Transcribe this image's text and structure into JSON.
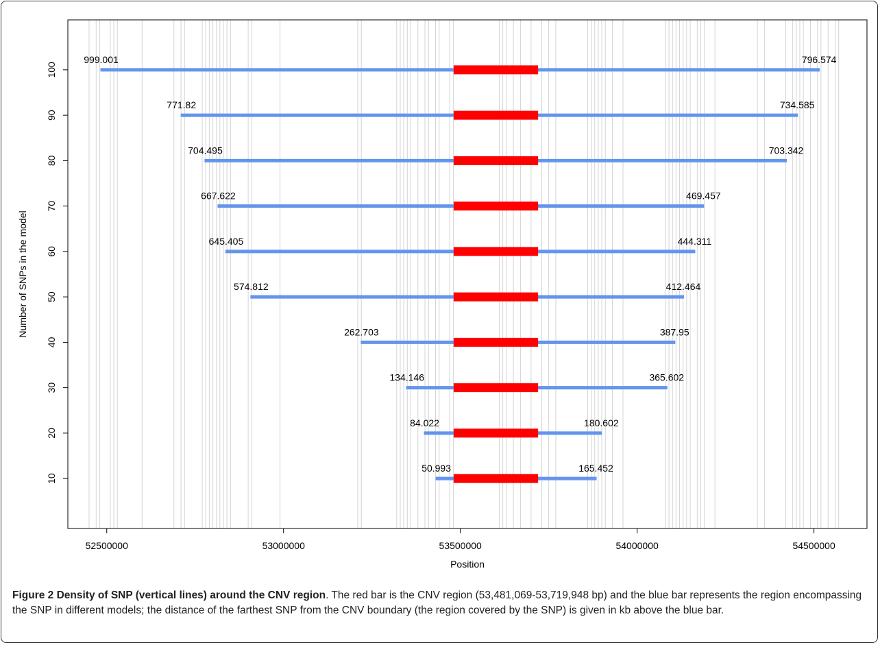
{
  "chart_data": {
    "type": "bar",
    "xlabel": "Position",
    "ylabel": "Number of SNPs in the model",
    "xlim": [
      52390000,
      54650000
    ],
    "ylim": [
      -1,
      111
    ],
    "x_ticks": [
      52500000,
      53000000,
      53500000,
      54000000,
      54500000
    ],
    "x_tick_labels": [
      "52500000",
      "53000000",
      "53500000",
      "54000000",
      "54500000"
    ],
    "y_ticks": [
      10,
      20,
      30,
      40,
      50,
      60,
      70,
      80,
      90,
      100
    ],
    "y_tick_labels": [
      "10",
      "20",
      "30",
      "40",
      "50",
      "60",
      "70",
      "80",
      "90",
      "100"
    ],
    "cnv_region": [
      53481069,
      53719948
    ],
    "models": [
      {
        "snps": 100,
        "left_kb": "999.001",
        "right_kb": "796.574"
      },
      {
        "snps": 90,
        "left_kb": "771.82",
        "right_kb": "734.585"
      },
      {
        "snps": 80,
        "left_kb": "704.495",
        "right_kb": "703.342"
      },
      {
        "snps": 70,
        "left_kb": "667.622",
        "right_kb": "469.457"
      },
      {
        "snps": 60,
        "left_kb": "645.405",
        "right_kb": "444.311"
      },
      {
        "snps": 50,
        "left_kb": "574.812",
        "right_kb": "412.464"
      },
      {
        "snps": 40,
        "left_kb": "262.703",
        "right_kb": "387.95"
      },
      {
        "snps": 30,
        "left_kb": "134.146",
        "right_kb": "365.602"
      },
      {
        "snps": 20,
        "left_kb": "84.022",
        "right_kb": "180.602"
      },
      {
        "snps": 10,
        "left_kb": "50.993",
        "right_kb": "165.452"
      }
    ],
    "snp_positions": [
      52450000,
      52470000,
      52480000,
      52510000,
      52520000,
      52530000,
      52600000,
      52690000,
      52710000,
      52720000,
      52770000,
      52780000,
      52790000,
      52800000,
      52810000,
      52820000,
      52830000,
      52840000,
      52850000,
      52900000,
      52910000,
      52990000,
      53210000,
      53220000,
      53320000,
      53330000,
      53340000,
      53350000,
      53360000,
      53380000,
      53400000,
      53410000,
      53430000,
      53440000,
      53470000,
      53480000,
      53610000,
      53620000,
      53630000,
      53650000,
      53670000,
      53700000,
      53730000,
      53750000,
      53770000,
      53860000,
      53870000,
      53880000,
      53890000,
      53900000,
      53910000,
      53930000,
      53960000,
      54080000,
      54090000,
      54100000,
      54110000,
      54120000,
      54130000,
      54140000,
      54150000,
      54170000,
      54180000,
      54190000,
      54220000,
      54340000,
      54360000,
      54420000,
      54440000,
      54450000,
      54460000,
      54470000,
      54490000,
      54510000,
      54520000,
      54540000,
      54560000,
      54570000
    ],
    "colors": {
      "cnv": "#ff0000",
      "region": "#6495ed",
      "snp_line": "#d3d3d3",
      "axis": "#000000"
    }
  },
  "caption": {
    "title": "Figure 2 Density of SNP (vertical lines) around the CNV region",
    "text": ". The red bar is the CNV region (53,481,069-53,719,948 bp) and the blue bar represents the region encompassing the SNP in different models; the distance of the farthest SNP from the CNV boundary (the region covered by the SNP) is given in kb above the blue bar."
  }
}
